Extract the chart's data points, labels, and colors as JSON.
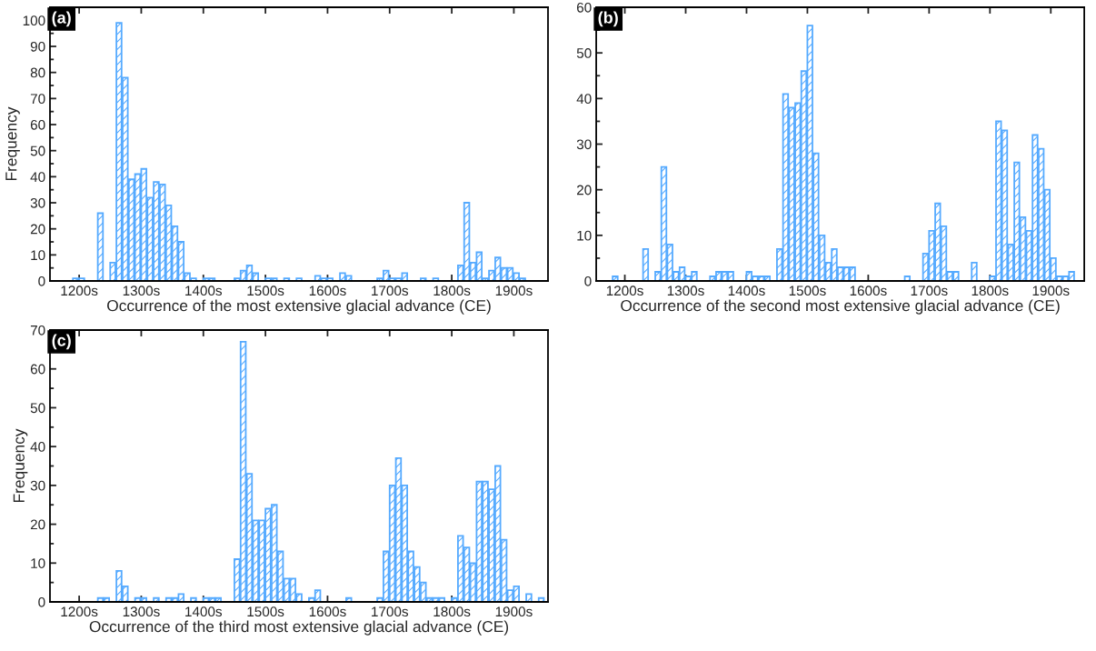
{
  "chart_data": [
    {
      "type": "histogram",
      "xlabel": "Occurrence of the most extensive glacial advance (CE)",
      "ylabel": "Frequency",
      "annotations": [
        "(a)"
      ],
      "color": "#55aaff",
      "bins": [
        1190,
        1200,
        1210,
        1220,
        1230,
        1240,
        1250,
        1260,
        1270,
        1280,
        1290,
        1300,
        1310,
        1320,
        1330,
        1340,
        1350,
        1360,
        1370,
        1380,
        1390,
        1400,
        1410,
        1420,
        1430,
        1440,
        1450,
        1460,
        1470,
        1480,
        1490,
        1500,
        1510,
        1520,
        1530,
        1540,
        1550,
        1560,
        1570,
        1580,
        1590,
        1600,
        1610,
        1620,
        1630,
        1640,
        1650,
        1660,
        1670,
        1680,
        1690,
        1700,
        1710,
        1720,
        1730,
        1740,
        1750,
        1760,
        1770,
        1780,
        1790,
        1800,
        1810,
        1820,
        1830,
        1840,
        1850,
        1860,
        1870,
        1880,
        1890,
        1900,
        1910,
        1920
      ],
      "values": [
        1,
        1,
        0,
        0,
        26,
        0,
        7,
        99,
        78,
        39,
        41,
        43,
        32,
        38,
        37,
        29,
        21,
        15,
        3,
        1,
        0,
        1,
        1,
        0,
        0,
        0,
        1,
        4,
        6,
        3,
        0,
        1,
        1,
        0,
        1,
        0,
        1,
        0,
        0,
        2,
        1,
        1,
        0,
        3,
        2,
        0,
        0,
        0,
        0,
        1,
        4,
        1,
        1,
        3,
        0,
        0,
        1,
        0,
        1,
        0,
        0,
        0,
        6,
        30,
        7,
        11,
        1,
        4,
        9,
        5,
        5,
        3,
        1
      ],
      "xlim": [
        1153,
        1955
      ],
      "xticks": [
        {
          "value": 1200,
          "label": "1200s"
        },
        {
          "value": 1300,
          "label": "1300s"
        },
        {
          "value": 1400,
          "label": "1400s"
        },
        {
          "value": 1500,
          "label": "1500s"
        },
        {
          "value": 1600,
          "label": "1600s"
        },
        {
          "value": 1700,
          "label": "1700s"
        },
        {
          "value": 1800,
          "label": "1800s"
        },
        {
          "value": 1900,
          "label": "1900s"
        }
      ],
      "ylim": [
        0,
        105
      ],
      "yticks": [
        0,
        10,
        20,
        30,
        40,
        50,
        60,
        70,
        80,
        90,
        100
      ],
      "grid": false
    },
    {
      "type": "histogram",
      "xlabel": "Occurrence of the second most extensive glacial advance (CE)",
      "annotations": [
        "(b)"
      ],
      "color": "#55aaff",
      "bins": [
        1180,
        1190,
        1200,
        1210,
        1220,
        1230,
        1240,
        1250,
        1260,
        1270,
        1280,
        1290,
        1300,
        1310,
        1320,
        1330,
        1340,
        1350,
        1360,
        1370,
        1380,
        1390,
        1400,
        1410,
        1420,
        1430,
        1440,
        1450,
        1460,
        1470,
        1480,
        1490,
        1500,
        1510,
        1520,
        1530,
        1540,
        1550,
        1560,
        1570,
        1580,
        1590,
        1600,
        1610,
        1620,
        1630,
        1640,
        1650,
        1660,
        1670,
        1680,
        1690,
        1700,
        1710,
        1720,
        1730,
        1740,
        1750,
        1760,
        1770,
        1780,
        1790,
        1800,
        1810,
        1820,
        1830,
        1840,
        1850,
        1860,
        1870,
        1880,
        1890,
        1900,
        1910,
        1920,
        1930,
        1940
      ],
      "values": [
        1,
        0,
        0,
        0,
        0,
        7,
        0,
        2,
        25,
        8,
        2,
        3,
        1,
        2,
        0,
        0,
        1,
        2,
        2,
        2,
        0,
        0,
        2,
        1,
        1,
        1,
        0,
        7,
        41,
        38,
        39,
        46,
        56,
        28,
        10,
        4,
        7,
        3,
        3,
        3,
        0,
        0,
        0,
        0,
        0,
        0,
        0,
        0,
        1,
        0,
        0,
        6,
        11,
        17,
        12,
        2,
        2,
        0,
        0,
        4,
        0,
        0,
        1,
        35,
        33,
        8,
        26,
        14,
        11,
        32,
        29,
        20,
        5,
        1,
        1,
        2
      ],
      "xlim": [
        1153,
        1955
      ],
      "xticks": [
        {
          "value": 1200,
          "label": "1200s"
        },
        {
          "value": 1300,
          "label": "1300s"
        },
        {
          "value": 1400,
          "label": "1400s"
        },
        {
          "value": 1500,
          "label": "1500s"
        },
        {
          "value": 1600,
          "label": "1600s"
        },
        {
          "value": 1700,
          "label": "1700s"
        },
        {
          "value": 1800,
          "label": "1800s"
        },
        {
          "value": 1900,
          "label": "1900s"
        }
      ],
      "ylim": [
        0,
        60
      ],
      "yticks": [
        0,
        10,
        20,
        30,
        40,
        50,
        60
      ],
      "grid": false
    },
    {
      "type": "histogram",
      "xlabel": "Occurrence of the third most extensive glacial advance (CE)",
      "ylabel": "Frequency",
      "annotations": [
        "(c)"
      ],
      "color": "#55aaff",
      "bins": [
        1230,
        1240,
        1250,
        1260,
        1270,
        1280,
        1290,
        1300,
        1310,
        1320,
        1330,
        1340,
        1350,
        1360,
        1370,
        1380,
        1390,
        1400,
        1410,
        1420,
        1430,
        1440,
        1450,
        1460,
        1470,
        1480,
        1490,
        1500,
        1510,
        1520,
        1530,
        1540,
        1550,
        1560,
        1570,
        1580,
        1590,
        1600,
        1610,
        1620,
        1630,
        1640,
        1650,
        1660,
        1670,
        1680,
        1690,
        1700,
        1710,
        1720,
        1730,
        1740,
        1750,
        1760,
        1770,
        1780,
        1790,
        1800,
        1810,
        1820,
        1830,
        1840,
        1850,
        1860,
        1870,
        1880,
        1890,
        1900,
        1910,
        1920,
        1930,
        1940,
        1950
      ],
      "values": [
        1,
        1,
        0,
        8,
        4,
        0,
        1,
        1,
        0,
        1,
        0,
        1,
        1,
        2,
        0,
        1,
        0,
        1,
        1,
        1,
        0,
        0,
        11,
        67,
        33,
        21,
        21,
        24,
        25,
        13,
        6,
        6,
        2,
        0,
        1,
        3,
        0,
        0,
        0,
        0,
        1,
        0,
        0,
        0,
        0,
        1,
        13,
        30,
        37,
        30,
        13,
        9,
        5,
        1,
        1,
        1,
        0,
        1,
        17,
        14,
        10,
        31,
        31,
        29,
        35,
        16,
        3,
        4,
        0,
        2,
        0,
        1
      ],
      "xlim": [
        1153,
        1955
      ],
      "xticks": [
        {
          "value": 1200,
          "label": "1200s"
        },
        {
          "value": 1300,
          "label": "1300s"
        },
        {
          "value": 1400,
          "label": "1400s"
        },
        {
          "value": 1500,
          "label": "1500s"
        },
        {
          "value": 1600,
          "label": "1600s"
        },
        {
          "value": 1700,
          "label": "1700s"
        },
        {
          "value": 1800,
          "label": "1800s"
        },
        {
          "value": 1900,
          "label": "1900s"
        }
      ],
      "ylim": [
        0,
        70
      ],
      "yticks": [
        0,
        10,
        20,
        30,
        40,
        50,
        60,
        70
      ],
      "grid": false
    }
  ]
}
